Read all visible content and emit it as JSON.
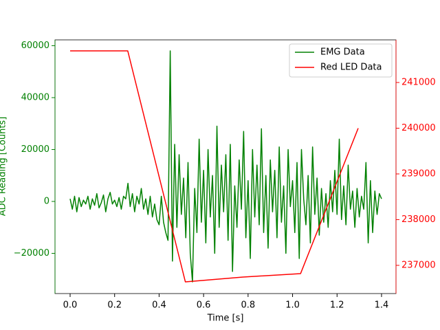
{
  "chart_data": {
    "type": "line",
    "x_label": "Time [s]",
    "y_label": "ADC Reading [Counts]",
    "xlim": [
      -0.068,
      1.465
    ],
    "xticks": [
      {
        "value": 0,
        "label": "0.0"
      },
      {
        "value": 0.2,
        "label": "0.2"
      },
      {
        "value": 0.4,
        "label": "0.4"
      },
      {
        "value": 0.6,
        "label": "0.6"
      },
      {
        "value": 0.8,
        "label": "0.8"
      },
      {
        "value": 1.0,
        "label": "1.0"
      },
      {
        "value": 1.2,
        "label": "1.2"
      },
      {
        "value": 1.4,
        "label": "1.4"
      }
    ],
    "ylim": [
      -35500,
      62250
    ],
    "yticks": [
      {
        "value": -20000,
        "label": "−20000"
      },
      0,
      20000,
      40000,
      60000
    ],
    "y2lim": [
      236383,
      241932
    ],
    "y2ticks": [
      237000,
      238000,
      239000,
      240000,
      241000
    ],
    "legend": "upper right",
    "series": [
      {
        "name": "EMG Data",
        "color": "#008000",
        "axis": "y",
        "x": [
          0,
          0.01,
          0.02,
          0.03,
          0.04,
          0.05,
          0.06,
          0.07,
          0.08,
          0.09,
          0.1,
          0.11,
          0.12,
          0.13,
          0.14,
          0.15,
          0.16,
          0.17,
          0.18,
          0.19,
          0.2,
          0.21,
          0.22,
          0.23,
          0.24,
          0.25,
          0.26,
          0.27,
          0.28,
          0.29,
          0.3,
          0.31,
          0.32,
          0.33,
          0.34,
          0.35,
          0.36,
          0.37,
          0.38,
          0.39,
          0.4,
          0.41,
          0.42,
          0.43,
          0.44,
          0.45,
          0.46,
          0.47,
          0.48,
          0.49,
          0.5,
          0.51,
          0.52,
          0.53,
          0.54,
          0.55,
          0.56,
          0.57,
          0.58,
          0.59,
          0.6,
          0.61,
          0.62,
          0.63,
          0.64,
          0.65,
          0.66,
          0.67,
          0.68,
          0.69,
          0.7,
          0.71,
          0.72,
          0.73,
          0.74,
          0.75,
          0.76,
          0.77,
          0.78,
          0.79,
          0.8,
          0.81,
          0.82,
          0.83,
          0.84,
          0.85,
          0.86,
          0.87,
          0.88,
          0.89,
          0.9,
          0.91,
          0.92,
          0.93,
          0.94,
          0.95,
          0.96,
          0.97,
          0.98,
          0.99,
          1.0,
          1.01,
          1.02,
          1.03,
          1.04,
          1.05,
          1.06,
          1.07,
          1.08,
          1.09,
          1.1,
          1.11,
          1.12,
          1.13,
          1.14,
          1.15,
          1.16,
          1.17,
          1.18,
          1.19,
          1.2,
          1.21,
          1.22,
          1.23,
          1.24,
          1.25,
          1.26,
          1.27,
          1.28,
          1.29,
          1.3,
          1.31,
          1.32,
          1.33,
          1.34,
          1.35,
          1.36,
          1.37,
          1.38,
          1.39,
          1.4
        ],
        "values": [
          1000,
          -3000,
          2000,
          -4000,
          1500,
          -2000,
          500,
          -1000,
          2000,
          -3000,
          1000,
          -1500,
          3000,
          -2500,
          -500,
          2500,
          -4000,
          1000,
          3500,
          -1000,
          500,
          -2000,
          1500,
          -3000,
          2000,
          1000,
          7000,
          -2000,
          3000,
          -4000,
          2000,
          -1000,
          5000,
          -3000,
          1000,
          -5000,
          2000,
          -6000,
          -1000,
          -7000,
          -9000,
          2000,
          -8000,
          -12000,
          -15000,
          58000,
          -23000,
          22000,
          -10000,
          18000,
          -5000,
          9000,
          -14000,
          15000,
          -20000,
          -31000,
          5000,
          -12000,
          24000,
          -8000,
          12000,
          -16000,
          20000,
          -6000,
          10000,
          -20000,
          29000,
          -10000,
          14000,
          -4000,
          18000,
          -15000,
          22000,
          -27000,
          6000,
          -10000,
          16000,
          -3000,
          27000,
          -14000,
          8000,
          -22000,
          20000,
          -6000,
          14000,
          -9000,
          28000,
          -12000,
          10000,
          -18000,
          16000,
          -4000,
          12000,
          -14000,
          21000,
          -8000,
          6000,
          -20000,
          20000,
          -2000,
          8000,
          -12000,
          15000,
          -22000,
          20000,
          1000,
          -9000,
          10000,
          -16000,
          21000,
          -5000,
          9000,
          -13000,
          5000,
          -8000,
          3000,
          -10000,
          8000,
          -4000,
          12000,
          -5000,
          24000,
          -7000,
          6000,
          -9000,
          14000,
          -3000,
          4000,
          -10000,
          5000,
          -6000,
          2000,
          -3000,
          15000,
          -16000,
          8000,
          -12000,
          4000,
          -5000,
          3000,
          1000
        ]
      },
      {
        "name": "Red LED Data",
        "color": "#ff0000",
        "axis": "y2",
        "x": [
          0,
          0.259,
          0.518,
          0.777,
          1.036,
          1.295
        ],
        "values": [
          241692,
          241692,
          236639,
          236744,
          236820,
          240000
        ]
      }
    ]
  }
}
